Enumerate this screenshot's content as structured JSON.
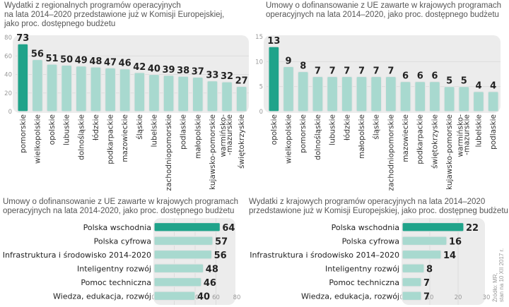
{
  "colors": {
    "highlight": "#1fa38a",
    "bar": "#a8d9cf",
    "bar_stroke": "#e6e6e6",
    "panel": "#ececec",
    "grid": "#dcdcdc"
  },
  "source": {
    "line1": "Źródło: MR,",
    "line2": "stan na 10 XII 2017 r."
  },
  "chart_data": [
    {
      "id": "top-left",
      "type": "bar",
      "orientation": "vertical",
      "title": "Wydatki z regionalnych programów operacyjnych na lata 2014–2020 przedstawione już w Komisji Europejskiej, jako proc. dostępnego budżetu",
      "title_lines": [
        "Wydatki z regionalnych programów operacyjnych",
        "na lata 2014–2020 przedstawione już w Komisji Europejskiej,",
        "jako proc. dostępnego budżetu"
      ],
      "categories": [
        "pomorskie",
        "wielkopolskie",
        "opolskie",
        "lubuskie",
        "dolnośląskie",
        "łódzkie",
        "podkarpackie",
        "mazowieckie",
        "śląskie",
        "lubelskie",
        "zachodniopomorskie",
        "podlaskie",
        "małopolskie",
        "kujawsko-pomorskie",
        "warmińsko-\n-mazurskie",
        "świętokrzyskie"
      ],
      "values": [
        73,
        56,
        51,
        50,
        49,
        48,
        47,
        46,
        42,
        40,
        39,
        38,
        37,
        33,
        32,
        27
      ],
      "highlight_index": 0,
      "ylim": [
        0,
        80
      ],
      "yticks": [
        0,
        20,
        40,
        60,
        80
      ],
      "grid": true,
      "xlabel": "",
      "ylabel": ""
    },
    {
      "id": "top-right",
      "type": "bar",
      "orientation": "vertical",
      "title": "Umowy o dofinansowanie z UE zawarte w krajowych programach operacyjnych na lata 2014–2020, jako proc. dostępnego budżetu",
      "title_lines": [
        "Umowy o dofinansowanie z UE zawarte w krajowych programach",
        "operacyjnych na lata 2014–2020, jako proc. dostępnego budżetu"
      ],
      "categories": [
        "opolskie",
        "wielkopolskie",
        "pomorskie",
        "dolnośląskie",
        "lubuskie",
        "łódzkie",
        "małopolskie",
        "śląskie",
        "zachodniopomorskie",
        "mazowieckie",
        "podkarpackie",
        "świętokrzyskie",
        "kujawsko-pomorskie",
        "warmińsko-\n-mazurskie",
        "lubelskie",
        "podlaskie"
      ],
      "values": [
        13,
        9,
        8,
        7,
        7,
        7,
        7,
        7,
        7,
        6,
        6,
        6,
        5,
        5,
        4,
        4
      ],
      "highlight_index": 0,
      "ylim": [
        0,
        15
      ],
      "yticks": [
        0,
        5,
        10,
        15
      ],
      "grid": true,
      "xlabel": "",
      "ylabel": ""
    },
    {
      "id": "bottom-left",
      "type": "bar",
      "orientation": "horizontal",
      "title": "Umowy o dofinansowanie z UE zawarte w krajowych programach operacyjnych na lata 2014-2020, jako proc. dostępnego budżetu",
      "title_lines": [
        "Umowy o dofinansowanie z UE zawarte w krajowych programach",
        "operacyjnych na lata 2014-2020, jako proc. dostępnego budżetu"
      ],
      "categories": [
        "Polska wschodnia",
        "Polska cyfrowa",
        "Infrastruktura i środowisko 2014-2020",
        "Inteligentny rozwój",
        "Pomoc techniczna",
        "Wiedza, edukacja, rozwój"
      ],
      "values": [
        64,
        57,
        56,
        48,
        46,
        40
      ],
      "highlight_index": 0,
      "xlim": [
        0,
        80
      ],
      "xticks": [
        0,
        20,
        40,
        60,
        80
      ],
      "grid": true,
      "xlabel": "",
      "ylabel": ""
    },
    {
      "id": "bottom-right",
      "type": "bar",
      "orientation": "horizontal",
      "title": "Wydatki z krajowych programów operacyjnych na lata 2014–2020 przedstawione już w Komisji Europejskiej, jako proc. dostępneg budżetu",
      "title_lines": [
        "Wydatki z krajowych programów operacyjnych na lata 2014–2020",
        "przedstawione już w Komisji Europejskiej, jako proc. dostępneg budżetu"
      ],
      "categories": [
        "Polska wschodnia",
        "Polska cyfrowa",
        "Infrastruktura i środowisko 2014–2020",
        "Inteligentny rozwój",
        "Pomoc techniczna",
        "Wiedza, edukacja, rozwój"
      ],
      "values": [
        22,
        16,
        14,
        8,
        7,
        7
      ],
      "highlight_index": 0,
      "xlim": [
        0,
        30
      ],
      "xticks": [
        0,
        10,
        20,
        30
      ],
      "grid": true,
      "xlabel": "",
      "ylabel": ""
    }
  ]
}
